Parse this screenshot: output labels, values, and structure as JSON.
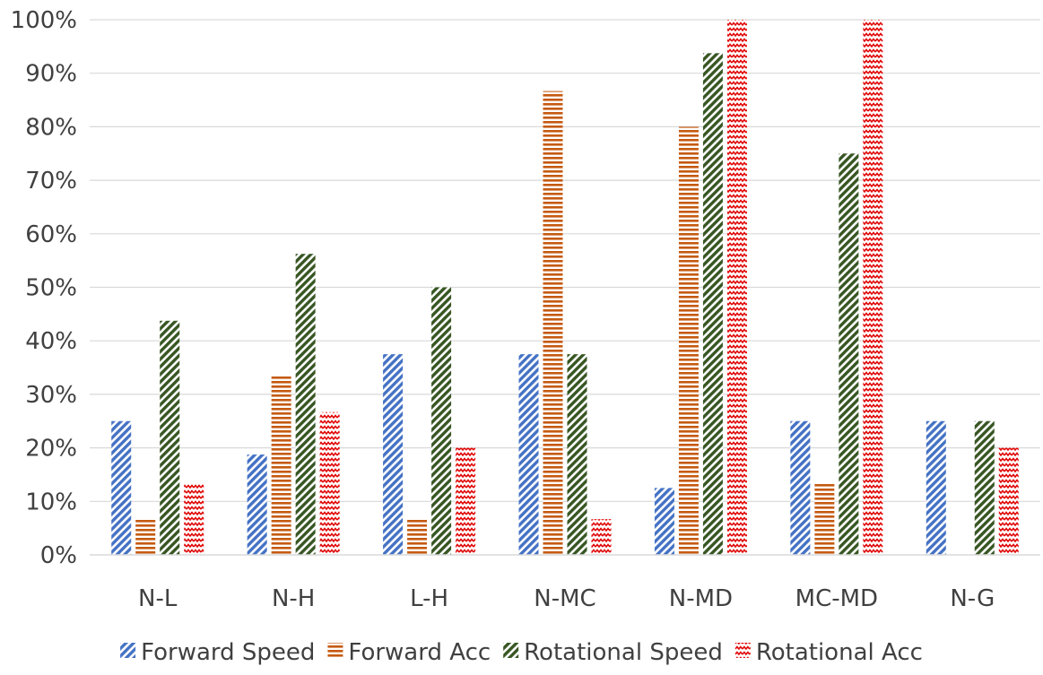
{
  "chart_data": {
    "type": "bar",
    "title": "",
    "xlabel": "",
    "ylabel": "",
    "ylim": [
      0,
      100
    ],
    "y_ticks": [
      "0%",
      "10%",
      "20%",
      "30%",
      "40%",
      "50%",
      "60%",
      "70%",
      "80%",
      "90%",
      "100%"
    ],
    "grid": true,
    "legend_position": "bottom",
    "categories": [
      "N-L",
      "N-H",
      "L-H",
      "N-MC",
      "N-MD",
      "MC-MD",
      "N-G"
    ],
    "series": [
      {
        "name": "Forward Speed",
        "color": "#4472C4",
        "pattern": "diagonal",
        "values": [
          25,
          18.75,
          37.5,
          37.5,
          12.5,
          25,
          25
        ]
      },
      {
        "name": "Forward Acc",
        "color": "#C55A11",
        "pattern": "horizontal",
        "values": [
          6.67,
          33.33,
          6.67,
          86.67,
          80,
          13.33,
          0
        ]
      },
      {
        "name": "Rotational Speed",
        "color": "#375623",
        "pattern": "diagonal",
        "values": [
          43.75,
          56.25,
          50,
          37.5,
          93.75,
          75,
          25
        ]
      },
      {
        "name": "Rotational Acc",
        "color": "#E00000",
        "pattern": "zigzag",
        "values": [
          13.33,
          26.67,
          20,
          6.67,
          100,
          100,
          20
        ]
      }
    ]
  }
}
